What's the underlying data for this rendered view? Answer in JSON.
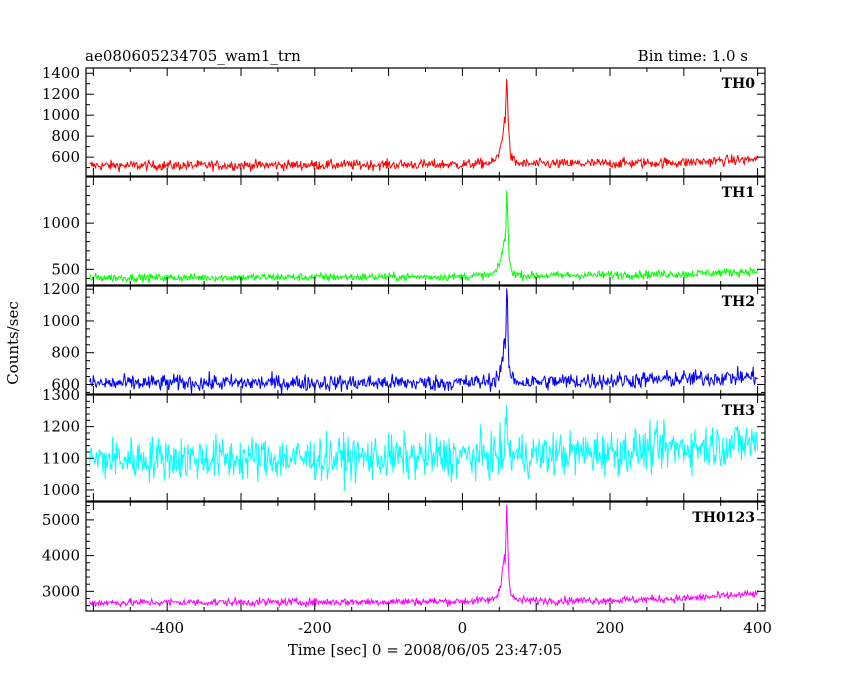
{
  "header": {
    "title": "ae080605234705_wam1_trn",
    "bin_time": "Bin time: 1.0 s"
  },
  "chart_data": {
    "type": "line",
    "xlabel": "Time [sec] 0 = 2008/06/05 23:47:05",
    "ylabel": "Counts/sec",
    "xlim": [
      -510,
      410
    ],
    "x_ticks": [
      -400,
      -200,
      0,
      200,
      400
    ],
    "grid": false,
    "series": [
      {
        "name": "TH0",
        "color": "#ff0000",
        "ylim": [
          420,
          1450
        ],
        "y_ticks": [
          600,
          800,
          1000,
          1200,
          1400
        ],
        "profile": {
          "x": [
            -505,
            -400,
            -200,
            0,
            40,
            48,
            52,
            55,
            57,
            58,
            59,
            60,
            61,
            62,
            63,
            64,
            66,
            70,
            75,
            90,
            200,
            300,
            400
          ],
          "y": [
            520,
            520,
            525,
            530,
            545,
            600,
            700,
            850,
            950,
            900,
            1150,
            1420,
            1250,
            1000,
            820,
            700,
            600,
            560,
            540,
            535,
            540,
            550,
            580
          ]
        }
      },
      {
        "name": "TH1",
        "color": "#00ff00",
        "ylim": [
          330,
          1500
        ],
        "y_ticks": [
          500,
          1000
        ],
        "profile": {
          "x": [
            -505,
            -400,
            -200,
            0,
            40,
            48,
            52,
            55,
            57,
            58,
            59,
            60,
            61,
            62,
            63,
            64,
            66,
            70,
            75,
            90,
            200,
            300,
            400
          ],
          "y": [
            410,
            410,
            415,
            420,
            440,
            500,
            600,
            750,
            820,
            800,
            1000,
            1350,
            1150,
            900,
            700,
            580,
            500,
            460,
            440,
            430,
            440,
            450,
            480
          ]
        }
      },
      {
        "name": "TH2",
        "color": "#0000ff",
        "ylim": [
          540,
          1220
        ],
        "y_ticks": [
          600,
          800,
          1000,
          1200
        ],
        "profile": {
          "x": [
            -505,
            -400,
            -200,
            0,
            40,
            48,
            52,
            55,
            57,
            58,
            59,
            60,
            61,
            62,
            63,
            64,
            66,
            70,
            75,
            90,
            200,
            300,
            400
          ],
          "y": [
            605,
            610,
            610,
            610,
            620,
            650,
            700,
            790,
            850,
            820,
            950,
            1180,
            1050,
            880,
            750,
            690,
            650,
            630,
            620,
            615,
            625,
            635,
            650
          ]
        }
      },
      {
        "name": "TH3",
        "color": "#00ffff",
        "ylim": [
          965,
          1300
        ],
        "y_ticks": [
          1000,
          1100,
          1200,
          1300
        ],
        "profile": {
          "x": [
            -505,
            -400,
            -200,
            0,
            55,
            58,
            60,
            62,
            65,
            100,
            200,
            300,
            400
          ],
          "y": [
            1095,
            1100,
            1100,
            1105,
            1110,
            1150,
            1240,
            1150,
            1110,
            1110,
            1120,
            1135,
            1150
          ]
        }
      },
      {
        "name": "TH0123",
        "color": "#ff00ff",
        "ylim": [
          2450,
          5500
        ],
        "y_ticks": [
          3000,
          4000,
          5000
        ],
        "profile": {
          "x": [
            -505,
            -400,
            -200,
            0,
            40,
            48,
            52,
            55,
            57,
            58,
            59,
            60,
            61,
            62,
            63,
            64,
            66,
            70,
            75,
            90,
            200,
            300,
            400
          ],
          "y": [
            2680,
            2690,
            2700,
            2720,
            2760,
            2900,
            3200,
            3700,
            4100,
            3900,
            4600,
            5400,
            4900,
            4100,
            3500,
            3100,
            2900,
            2800,
            2760,
            2740,
            2750,
            2800,
            2930
          ]
        }
      }
    ]
  }
}
